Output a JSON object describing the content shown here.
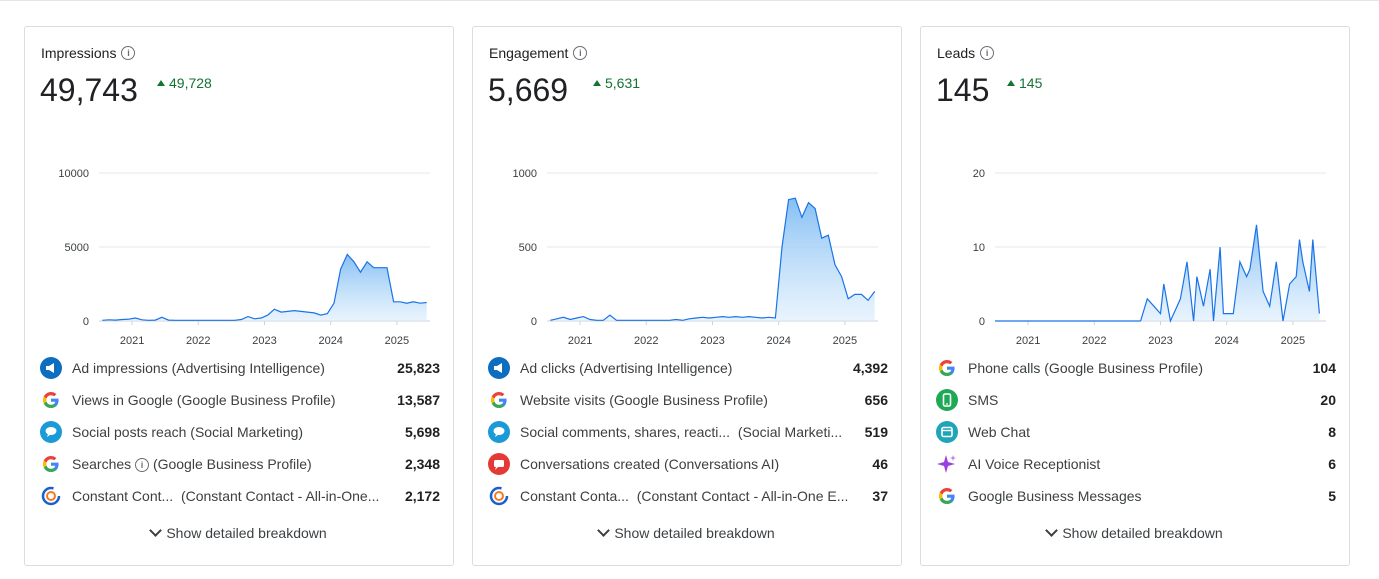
{
  "cards": [
    {
      "title": "Impressions",
      "value": "49,743",
      "delta": "49,728",
      "breakdown": "Show detailed breakdown",
      "rows": [
        {
          "icon": "megaphone-icon",
          "label": "Ad impressions (Advertising Intelligence)",
          "value": "25,823"
        },
        {
          "icon": "google-icon",
          "label": "Views in Google (Google Business Profile)",
          "value": "13,587"
        },
        {
          "icon": "social-marketing-icon",
          "label": "Social posts reach (Social Marketing)",
          "value": "5,698"
        },
        {
          "icon": "google-icon",
          "label": "Searches",
          "label_suffix": "(Google Business Profile)",
          "value": "2,348"
        },
        {
          "icon": "constant-contact-icon",
          "label": "Constant Cont...",
          "label_suffix": "(Constant Contact - All-in-One...",
          "value": "2,172"
        }
      ]
    },
    {
      "title": "Engagement",
      "value": "5,669",
      "delta": "5,631",
      "breakdown": "Show detailed breakdown",
      "rows": [
        {
          "icon": "megaphone-icon",
          "label": "Ad clicks (Advertising Intelligence)",
          "value": "4,392"
        },
        {
          "icon": "google-icon",
          "label": "Website visits (Google Business Profile)",
          "value": "656"
        },
        {
          "icon": "social-marketing-icon",
          "label": "Social comments, shares, reacti...",
          "label_suffix": "(Social Marketi...",
          "value": "519"
        },
        {
          "icon": "conversations-icon",
          "label": "Conversations created (Conversations AI)",
          "value": "46"
        },
        {
          "icon": "constant-contact-icon",
          "label": "Constant Conta...",
          "label_suffix": "(Constant Contact - All-in-One E...",
          "value": "37"
        }
      ]
    },
    {
      "title": "Leads",
      "value": "145",
      "delta": "145",
      "breakdown": "Show detailed breakdown",
      "rows": [
        {
          "icon": "google-icon",
          "label": "Phone calls (Google Business Profile)",
          "value": "104"
        },
        {
          "icon": "sms-phone-icon",
          "label": "SMS",
          "value": "20"
        },
        {
          "icon": "web-chat-icon",
          "label": "Web Chat",
          "value": "8"
        },
        {
          "icon": "sparkle-icon",
          "label": "AI Voice Receptionist",
          "value": "6"
        },
        {
          "icon": "google-icon",
          "label": "Google Business Messages",
          "value": "5"
        }
      ]
    }
  ],
  "chart_data": [
    {
      "type": "area",
      "ylim": [
        0,
        10000
      ],
      "yticks": [
        "10000",
        "5000",
        "0"
      ],
      "xticks": [
        "2021",
        "2022",
        "2023",
        "2024",
        "2025"
      ],
      "xlim": [
        2020.5,
        2025.5
      ],
      "x": [
        2020.55,
        2020.65,
        2020.75,
        2020.85,
        2020.95,
        2021.05,
        2021.15,
        2021.25,
        2021.35,
        2021.45,
        2021.55,
        2021.65,
        2021.75,
        2021.85,
        2021.95,
        2022.05,
        2022.15,
        2022.25,
        2022.35,
        2022.45,
        2022.55,
        2022.65,
        2022.75,
        2022.85,
        2022.95,
        2023.05,
        2023.15,
        2023.25,
        2023.35,
        2023.45,
        2023.55,
        2023.65,
        2023.75,
        2023.85,
        2023.95,
        2024.05,
        2024.15,
        2024.25,
        2024.35,
        2024.45,
        2024.55,
        2024.65,
        2024.75,
        2024.85,
        2024.95,
        2025.05,
        2025.15,
        2025.25,
        2025.35,
        2025.45
      ],
      "values": [
        50,
        80,
        60,
        100,
        120,
        200,
        80,
        50,
        60,
        250,
        60,
        50,
        50,
        50,
        50,
        50,
        50,
        50,
        50,
        50,
        50,
        100,
        300,
        150,
        200,
        400,
        800,
        600,
        650,
        700,
        650,
        600,
        550,
        400,
        500,
        1200,
        3500,
        4500,
        4000,
        3300,
        4000,
        3600,
        3600,
        3600,
        1300,
        1300,
        1200,
        1300,
        1200,
        1250
      ]
    },
    {
      "type": "area",
      "ylim": [
        0,
        1000
      ],
      "yticks": [
        "1000",
        "500",
        "0"
      ],
      "xticks": [
        "2021",
        "2022",
        "2023",
        "2024",
        "2025"
      ],
      "xlim": [
        2020.5,
        2025.5
      ],
      "x": [
        2020.55,
        2020.65,
        2020.75,
        2020.85,
        2020.95,
        2021.05,
        2021.15,
        2021.25,
        2021.35,
        2021.45,
        2021.55,
        2021.65,
        2021.75,
        2021.85,
        2021.95,
        2022.05,
        2022.15,
        2022.25,
        2022.35,
        2022.45,
        2022.55,
        2022.65,
        2022.75,
        2022.85,
        2022.95,
        2023.05,
        2023.15,
        2023.25,
        2023.35,
        2023.45,
        2023.55,
        2023.65,
        2023.75,
        2023.85,
        2023.95,
        2024.05,
        2024.15,
        2024.25,
        2024.35,
        2024.45,
        2024.55,
        2024.65,
        2024.75,
        2024.85,
        2024.95,
        2025.05,
        2025.15,
        2025.25,
        2025.35,
        2025.45
      ],
      "values": [
        5,
        15,
        25,
        10,
        20,
        30,
        10,
        5,
        5,
        40,
        5,
        5,
        5,
        5,
        5,
        5,
        5,
        5,
        5,
        10,
        5,
        15,
        20,
        25,
        20,
        25,
        30,
        25,
        30,
        25,
        30,
        25,
        20,
        25,
        20,
        500,
        820,
        830,
        700,
        800,
        760,
        560,
        580,
        380,
        300,
        150,
        180,
        180,
        140,
        200
      ]
    },
    {
      "type": "area",
      "ylim": [
        0,
        20
      ],
      "yticks": [
        "20",
        "10",
        "0"
      ],
      "xticks": [
        "2021",
        "2022",
        "2023",
        "2024",
        "2025"
      ],
      "xlim": [
        2020.5,
        2025.5
      ],
      "x": [
        2022.7,
        2022.8,
        2022.9,
        2023.0,
        2023.05,
        2023.15,
        2023.25,
        2023.3,
        2023.4,
        2023.5,
        2023.55,
        2023.65,
        2023.75,
        2023.8,
        2023.9,
        2023.95,
        2024.05,
        2024.1,
        2024.2,
        2024.3,
        2024.35,
        2024.45,
        2024.55,
        2024.65,
        2024.75,
        2024.85,
        2024.95,
        2025.05,
        2025.1,
        2025.15,
        2025.25,
        2025.3,
        2025.4
      ],
      "values": [
        0,
        3,
        2,
        1,
        5,
        0,
        2,
        3,
        8,
        0,
        6,
        2,
        7,
        0,
        10,
        1,
        1,
        1,
        8,
        6,
        7,
        13,
        4,
        2,
        8,
        0,
        5,
        6,
        11,
        8,
        4,
        11,
        1
      ]
    }
  ]
}
